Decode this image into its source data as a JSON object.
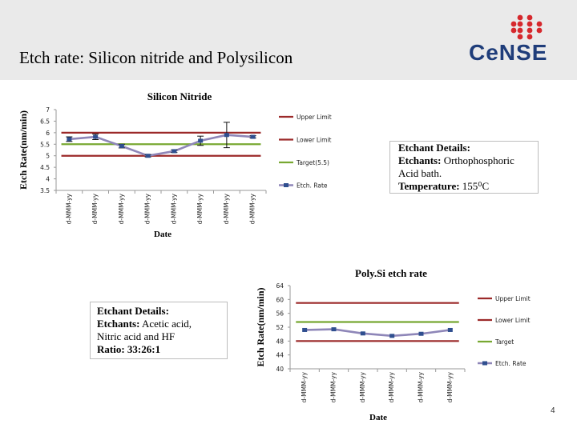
{
  "slide": {
    "title": "Etch rate: Silicon nitride and Polysilicon",
    "logo_text": "CeNSE",
    "page_number": "4"
  },
  "colors": {
    "upper_limit": "#9c2a2a",
    "lower_limit": "#9c2a2a",
    "target": "#78a832",
    "etch_rate": "#8e86b8",
    "marker": "#2f4f8f",
    "header_bg": "#eaeaea",
    "logo_blue": "#1f3d7a",
    "logo_red": "#d6282d"
  },
  "notes": {
    "nitride": {
      "line1": "Etchant Details:",
      "line2_label": "Etchants:",
      "line2_value": " Orthophosphoric",
      "line3": "Acid bath.",
      "line4_label": "Temperature:",
      "line4_value": " 155⁰C"
    },
    "polysi": {
      "line1": "Etchant Details:",
      "line2_label": "Etchants:",
      "line2_value": " Acetic acid,",
      "line3": "Nitric acid and HF",
      "line4": "Ratio: 33:26:1"
    }
  },
  "chart_data": [
    {
      "type": "line",
      "title": "Silicon Nitride",
      "xlabel": "Date",
      "ylabel": "Etch Rate(nm/min)",
      "ylim": [
        3.5,
        7
      ],
      "yticks": [
        "7",
        "6.5",
        "6",
        "5.5",
        "5",
        "4.5",
        "4",
        "3.5"
      ],
      "categories": [
        "d-MMM-yy",
        "d-MMM-yy",
        "d-MMM-yy",
        "d-MMM-yy",
        "d-MMM-yy",
        "d-MMM-yy",
        "d-MMM-yy",
        "d-MMM-yy"
      ],
      "legend_position": "right",
      "series": [
        {
          "name": "Upper Limit",
          "values": [
            6,
            6,
            6,
            6,
            6,
            6,
            6,
            6
          ]
        },
        {
          "name": "Lower Limit",
          "values": [
            5,
            5,
            5,
            5,
            5,
            5,
            5,
            5
          ]
        },
        {
          "name": "Target(5.5)",
          "values": [
            5.5,
            5.5,
            5.5,
            5.5,
            5.5,
            5.5,
            5.5,
            5.5
          ]
        },
        {
          "name": "Etch. Rate",
          "values": [
            5.72,
            5.82,
            5.42,
            5.0,
            5.2,
            5.65,
            5.9,
            5.82
          ],
          "errors": [
            0.1,
            0.12,
            0.08,
            0.05,
            0.06,
            0.2,
            0.55,
            0.05
          ]
        }
      ]
    },
    {
      "type": "line",
      "title": "Poly.Si etch rate",
      "xlabel": "Date",
      "ylabel": "Etch Rate(nm/min)",
      "ylim": [
        40,
        64
      ],
      "yticks": [
        "64",
        "60",
        "56",
        "52",
        "48",
        "44",
        "40"
      ],
      "categories": [
        "d-MMM-yy",
        "d-MMM-yy",
        "d-MMM-yy",
        "d-MMM-yy",
        "d-MMM-yy",
        "d-MMM-yy"
      ],
      "legend_position": "right",
      "series": [
        {
          "name": "Upper Limit",
          "values": [
            59,
            59,
            59,
            59,
            59,
            59
          ]
        },
        {
          "name": "Lower Limit",
          "values": [
            48,
            48,
            48,
            48,
            48,
            48
          ]
        },
        {
          "name": "Target",
          "values": [
            53.5,
            53.5,
            53.5,
            53.5,
            53.5,
            53.5
          ]
        },
        {
          "name": "Etch. Rate",
          "values": [
            51.2,
            51.4,
            50.2,
            49.5,
            50.1,
            51.2
          ]
        }
      ]
    }
  ]
}
